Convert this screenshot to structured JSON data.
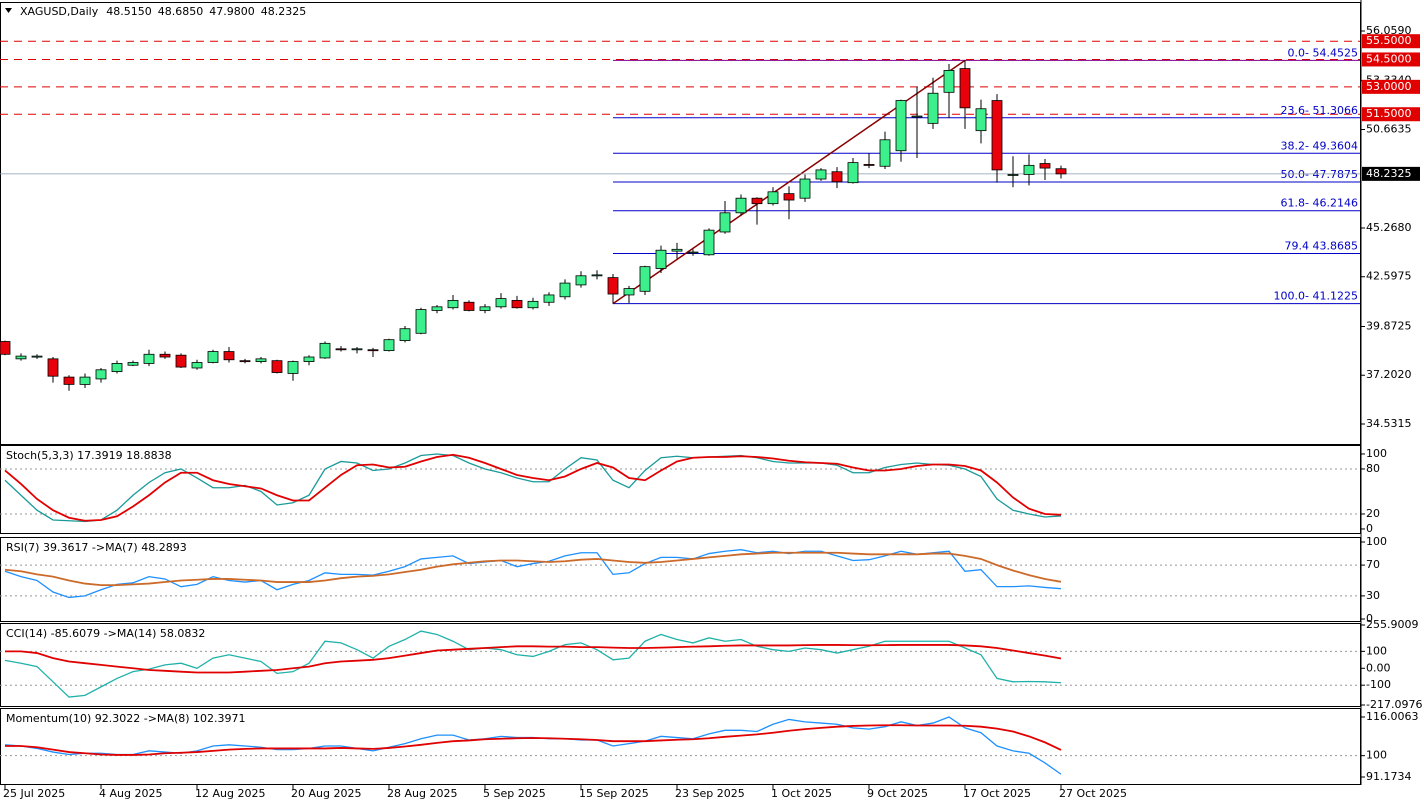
{
  "chart_data": [
    {
      "type": "candlestick",
      "title": "XAGUSD,Daily",
      "header_values": [
        {
          "value": 48.515,
          "label": "48.5150"
        },
        {
          "value": 48.685,
          "label": "48.6850"
        },
        {
          "value": 47.98,
          "label": "47.9800"
        },
        {
          "value": 48.2325,
          "label": "48.2325"
        }
      ],
      "categories": [
        "25 Jul 2025",
        null,
        null,
        null,
        null,
        null,
        "4 Aug 2025",
        null,
        null,
        null,
        null,
        null,
        "12 Aug 2025",
        null,
        null,
        null,
        null,
        null,
        "20 Aug 2025",
        null,
        null,
        null,
        null,
        null,
        "28 Aug 2025",
        null,
        null,
        null,
        null,
        null,
        "5 Sep 2025",
        null,
        null,
        null,
        null,
        null,
        "15 Sep 2025",
        null,
        null,
        null,
        null,
        null,
        "23 Sep 2025",
        null,
        null,
        null,
        null,
        null,
        "1 Oct 2025",
        null,
        null,
        null,
        null,
        null,
        "9 Oct 2025",
        null,
        null,
        null,
        null,
        null,
        "17 Oct 2025",
        null,
        null,
        null,
        null,
        null,
        "27 Oct 2025"
      ],
      "ohlc": {
        "open": [
          39.05,
          38.1,
          38.2,
          38.1,
          37.1,
          36.7,
          37.0,
          37.4,
          37.75,
          37.85,
          38.35,
          38.3,
          37.6,
          37.9,
          38.5,
          38.0,
          37.95,
          38.0,
          37.3,
          37.95,
          38.15,
          38.65,
          38.6,
          38.6,
          38.55,
          39.1,
          39.5,
          40.75,
          40.9,
          41.2,
          40.75,
          40.95,
          41.3,
          40.9,
          41.2,
          41.5,
          42.15,
          42.65,
          42.55,
          41.6,
          41.8,
          43.05,
          44.0,
          43.95,
          43.8,
          45.05,
          46.1,
          46.9,
          46.6,
          47.15,
          46.9,
          47.95,
          48.35,
          47.75,
          48.75,
          48.65,
          49.5,
          51.4,
          51.0,
          52.7,
          54.0,
          50.6,
          52.25,
          48.2,
          48.2,
          48.8,
          48.515
        ],
        "high": [
          39.1,
          38.4,
          38.35,
          38.2,
          37.2,
          37.3,
          37.6,
          38.0,
          38.0,
          38.6,
          38.5,
          38.4,
          38.05,
          38.6,
          38.75,
          38.1,
          38.2,
          38.05,
          38.0,
          38.3,
          39.05,
          38.8,
          38.75,
          38.7,
          39.2,
          39.9,
          40.9,
          41.05,
          41.6,
          41.3,
          41.1,
          41.7,
          41.55,
          41.45,
          41.75,
          42.45,
          42.9,
          42.95,
          42.75,
          42.1,
          43.2,
          44.3,
          44.45,
          44.1,
          45.25,
          46.75,
          47.1,
          46.95,
          47.5,
          47.55,
          48.2,
          48.55,
          48.6,
          49.1,
          49.35,
          50.55,
          52.3,
          53.0,
          53.5,
          54.25,
          54.45,
          52.3,
          52.6,
          49.2,
          49.3,
          49.05,
          48.685
        ],
        "low": [
          38.3,
          38.0,
          38.1,
          36.8,
          36.35,
          36.5,
          36.8,
          37.3,
          37.7,
          37.7,
          38.1,
          37.6,
          37.5,
          37.85,
          37.9,
          37.85,
          37.85,
          37.3,
          36.9,
          37.75,
          38.1,
          38.5,
          38.4,
          38.2,
          38.5,
          39.0,
          39.45,
          40.6,
          40.8,
          40.7,
          40.6,
          40.85,
          40.85,
          40.8,
          41.0,
          41.35,
          42.0,
          42.45,
          41.12,
          41.15,
          41.6,
          42.8,
          43.6,
          43.75,
          43.75,
          44.95,
          45.95,
          45.45,
          46.5,
          45.75,
          46.7,
          47.85,
          47.45,
          47.7,
          48.55,
          48.5,
          48.9,
          49.1,
          50.7,
          51.3,
          50.7,
          49.9,
          47.75,
          47.5,
          47.6,
          47.9,
          47.98
        ],
        "close": [
          38.35,
          38.25,
          38.25,
          37.15,
          36.7,
          37.1,
          37.5,
          37.85,
          37.9,
          38.35,
          38.2,
          37.65,
          37.9,
          38.5,
          38.05,
          37.98,
          38.1,
          37.35,
          37.95,
          38.2,
          38.95,
          38.6,
          38.65,
          38.55,
          39.15,
          39.75,
          40.8,
          40.95,
          41.3,
          40.75,
          40.95,
          41.4,
          40.9,
          41.25,
          41.6,
          42.25,
          42.65,
          42.7,
          41.65,
          41.95,
          43.15,
          44.05,
          44.1,
          43.95,
          45.15,
          46.1,
          46.9,
          46.6,
          47.25,
          46.8,
          47.95,
          48.45,
          47.8,
          48.85,
          48.7,
          50.1,
          52.25,
          51.4,
          52.65,
          53.9,
          51.85,
          51.8,
          48.45,
          48.2,
          48.7,
          48.55,
          48.2325
        ]
      },
      "up_color": "#3ef08c",
      "down_color": "#e8000b",
      "ylim": [
        33.49,
        57.593
      ],
      "yticks": [
        {
          "value": 56.059,
          "label": "56.0590"
        },
        {
          "value": 53.334,
          "label": "53.3340"
        },
        50.6635,
        {
          "value": 45.268,
          "label": "45.2680"
        },
        42.5975,
        39.8725,
        {
          "value": 37.202,
          "label": "37.2020"
        },
        34.5315
      ],
      "hlines": [
        {
          "value": 55.5,
          "label": "55.5000"
        },
        {
          "value": 54.5,
          "label": "54.5000"
        },
        {
          "value": 53.0,
          "label": "53.0000"
        },
        {
          "value": 51.5,
          "label": "51.5000"
        }
      ],
      "hline_color": "#e00000",
      "current_price": {
        "value": 48.2325,
        "label": "48.2325"
      },
      "fib": [
        {
          "value": 54.4525,
          "label": "0.0- 54.4525"
        },
        {
          "value": 51.3066,
          "label": "23.6- 51.3066"
        },
        {
          "value": 49.3604,
          "label": "38.2- 49.3604"
        },
        {
          "value": 47.7875,
          "label": "50.0- 47.7875"
        },
        {
          "value": 46.2146,
          "label": "61.8- 46.2146"
        },
        {
          "value": 43.8685,
          "label": "79.4 43.8685"
        },
        {
          "value": 41.1225,
          "label": "100.0- 41.1225"
        }
      ],
      "fib_color": "#0000c8",
      "fib_zero_color": "#800090",
      "trendline_color": "#8b0000"
    },
    {
      "type": "line",
      "title": "Stoch(5,3,3) 17.3919 18.8838",
      "ylim": [
        -2.7,
        109.3
      ],
      "yticks": [
        100,
        80,
        20,
        0
      ],
      "levels": [
        80,
        20
      ],
      "series": [
        {
          "name": "Main",
          "color": "#1a9a9a",
          "values": [
            65,
            45,
            25,
            12,
            11,
            10,
            12,
            25,
            45,
            62,
            75,
            80,
            68,
            55,
            55,
            58,
            50,
            32,
            35,
            45,
            80,
            90,
            88,
            78,
            80,
            88,
            98,
            100,
            98,
            88,
            80,
            75,
            68,
            63,
            63,
            80,
            95,
            92,
            65,
            55,
            78,
            95,
            97,
            95,
            96,
            97,
            98,
            95,
            90,
            88,
            88,
            88,
            85,
            75,
            75,
            82,
            86,
            88,
            86,
            85,
            80,
            70,
            40,
            25,
            20,
            16,
            17.3919
          ]
        },
        {
          "name": "Signal",
          "color": "#e00000",
          "values": [
            78,
            60,
            40,
            25,
            15,
            11,
            12,
            17,
            30,
            45,
            62,
            75,
            75,
            65,
            60,
            57,
            54,
            45,
            38,
            38,
            55,
            72,
            85,
            86,
            82,
            83,
            90,
            96,
            99,
            95,
            88,
            80,
            72,
            68,
            65,
            70,
            80,
            88,
            82,
            68,
            65,
            78,
            90,
            95,
            96,
            96,
            97,
            96,
            94,
            91,
            89,
            88,
            87,
            82,
            78,
            78,
            80,
            84,
            86,
            86,
            84,
            78,
            62,
            42,
            27,
            20,
            18.8838
          ]
        }
      ]
    },
    {
      "type": "line",
      "title": "RSI(7) 39.3617 ->MA(7) 48.2893",
      "ylim": [
        0,
        100
      ],
      "yticks": [
        100,
        70,
        30,
        0
      ],
      "levels": [
        70,
        30
      ],
      "series": [
        {
          "name": "RSI",
          "color": "#1e90ff",
          "values": [
            62,
            55,
            50,
            35,
            28,
            30,
            38,
            45,
            47,
            55,
            52,
            42,
            45,
            55,
            50,
            48,
            50,
            38,
            45,
            50,
            60,
            58,
            58,
            57,
            62,
            68,
            78,
            80,
            82,
            72,
            74,
            76,
            68,
            72,
            75,
            82,
            86,
            86,
            58,
            60,
            72,
            80,
            80,
            78,
            85,
            88,
            90,
            86,
            88,
            85,
            88,
            88,
            82,
            76,
            77,
            82,
            88,
            84,
            86,
            88,
            62,
            64,
            42,
            42,
            43,
            41,
            39.3617
          ]
        },
        {
          "name": "MA",
          "color": "#cc6a2a",
          "values": [
            64,
            62,
            58,
            55,
            50,
            46,
            44,
            44,
            45,
            46,
            48,
            50,
            51,
            52,
            52,
            51,
            50,
            48,
            48,
            48,
            50,
            53,
            55,
            56,
            58,
            61,
            64,
            68,
            71,
            73,
            75,
            76,
            76,
            75,
            74,
            75,
            77,
            78,
            76,
            74,
            73,
            74,
            76,
            78,
            80,
            82,
            84,
            85,
            86,
            86,
            86,
            86,
            86,
            85,
            84,
            84,
            84,
            84,
            85,
            85,
            82,
            78,
            70,
            63,
            57,
            52,
            48.2893
          ]
        }
      ]
    },
    {
      "type": "line",
      "title": "CCI(14) -85.6079 ->MA(14) 58.0832",
      "ylim": [
        -217.0976,
        255.9009
      ],
      "yticks": [
        255.9009,
        100,
        {
          "value": 0,
          "label": "0.00"
        },
        -100,
        -217.0976
      ],
      "levels": [
        100,
        -100
      ],
      "series": [
        {
          "name": "CCI",
          "color": "#20b2aa",
          "values": [
            47,
            30,
            10,
            -80,
            -170,
            -160,
            -110,
            -60,
            -20,
            -5,
            20,
            30,
            0,
            60,
            80,
            60,
            40,
            -30,
            -20,
            30,
            160,
            150,
            110,
            60,
            130,
            170,
            220,
            200,
            160,
            110,
            120,
            110,
            80,
            70,
            100,
            140,
            150,
            110,
            50,
            60,
            160,
            200,
            170,
            150,
            180,
            160,
            170,
            130,
            110,
            100,
            120,
            110,
            90,
            110,
            130,
            160,
            160,
            160,
            160,
            160,
            120,
            80,
            -60,
            -80,
            -78,
            -80,
            -85.6079
          ]
        },
        {
          "name": "MA",
          "color": "#e00000",
          "values": [
            100,
            100,
            90,
            60,
            40,
            30,
            20,
            10,
            0,
            -10,
            -15,
            -20,
            -25,
            -25,
            -25,
            -20,
            -15,
            -10,
            0,
            10,
            30,
            40,
            45,
            50,
            60,
            75,
            90,
            105,
            110,
            115,
            120,
            125,
            130,
            130,
            128,
            128,
            125,
            125,
            122,
            120,
            120,
            122,
            125,
            128,
            130,
            133,
            135,
            135,
            135,
            135,
            137,
            138,
            138,
            137,
            136,
            137,
            138,
            138,
            138,
            138,
            135,
            130,
            120,
            105,
            90,
            75,
            58.0832
          ]
        }
      ]
    },
    {
      "type": "line",
      "title": "Momentum(10) 92.3022 ->MA(8) 102.3971",
      "ylim": [
        91.1734,
        116.0063
      ],
      "yticks": [
        116.0063,
        100,
        91.1734
      ],
      "levels": [
        100
      ],
      "series": [
        {
          "name": "Momentum",
          "color": "#1e90ff",
          "values": [
            104.5,
            104,
            103,
            101.5,
            100.5,
            101,
            101,
            100.5,
            100.5,
            102,
            101.5,
            101,
            102,
            104,
            104.5,
            104,
            103.5,
            102.5,
            102.5,
            103,
            104,
            104,
            103,
            102,
            103.5,
            105,
            107,
            108.5,
            108.5,
            106.5,
            107,
            108,
            107.5,
            107.5,
            107,
            107,
            106.5,
            106.5,
            104,
            105,
            106,
            108,
            107.5,
            107,
            109,
            110.5,
            110.5,
            110,
            113,
            115,
            114,
            113.5,
            113,
            111.5,
            111,
            112,
            114,
            112.5,
            113.5,
            116,
            111.5,
            109.5,
            104,
            102,
            101,
            97,
            92.3022
          ]
        },
        {
          "name": "MA",
          "color": "#e00000",
          "values": [
            104,
            104,
            103.5,
            102.5,
            101.5,
            101,
            100.5,
            100.3,
            100.3,
            100.5,
            101,
            101.2,
            101.5,
            102,
            102.5,
            102.8,
            103,
            103,
            103,
            103,
            103,
            103.2,
            103,
            102.8,
            103.2,
            103.8,
            104.5,
            105.3,
            106,
            106.3,
            106.8,
            107,
            107.2,
            107.3,
            107.2,
            107,
            106.8,
            106.5,
            106,
            106,
            106,
            106.3,
            106.6,
            106.8,
            107.2,
            107.8,
            108.3,
            108.8,
            109.5,
            110.3,
            111,
            111.5,
            112,
            112.3,
            112.5,
            112.6,
            112.6,
            112.5,
            112.5,
            112.5,
            112.4,
            112,
            111.2,
            110,
            108,
            105.5,
            102.3971
          ]
        }
      ]
    }
  ]
}
